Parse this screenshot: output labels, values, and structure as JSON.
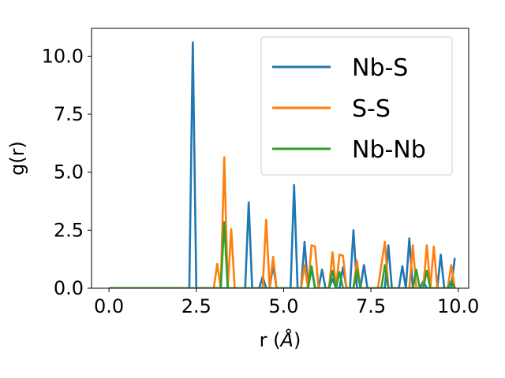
{
  "chart_data": {
    "type": "line",
    "title": "",
    "xlabel": "r (",
    "xlabel_unit": "Å",
    "xlabel_close": ")",
    "ylabel": "g(r)",
    "xlim": [
      -0.5,
      10.3
    ],
    "ylim": [
      0,
      11.2
    ],
    "xticks": [
      0.0,
      2.5,
      5.0,
      7.5,
      10.0
    ],
    "xtick_labels": [
      "0.0",
      "2.5",
      "5.0",
      "7.5",
      "10.0"
    ],
    "yticks": [
      0.0,
      2.5,
      5.0,
      7.5,
      10.0
    ],
    "ytick_labels": [
      "0.0",
      "2.5",
      "5.0",
      "7.5",
      "10.0"
    ],
    "grid": false,
    "legend_position": "top-right",
    "x": [
      0.0,
      0.1,
      0.2,
      0.3,
      0.4,
      0.5,
      0.6,
      0.7,
      0.8,
      0.9,
      1.0,
      1.1,
      1.2,
      1.3,
      1.4,
      1.5,
      1.6,
      1.7,
      1.8,
      1.9,
      2.0,
      2.1,
      2.2,
      2.3,
      2.4,
      2.5,
      2.6,
      2.7,
      2.8,
      2.9,
      3.0,
      3.1,
      3.2,
      3.3,
      3.4,
      3.5,
      3.6,
      3.7,
      3.8,
      3.9,
      4.0,
      4.1,
      4.2,
      4.3,
      4.4,
      4.5,
      4.6,
      4.7,
      4.8,
      4.9,
      5.0,
      5.1,
      5.2,
      5.3,
      5.4,
      5.5,
      5.6,
      5.7,
      5.8,
      5.9,
      6.0,
      6.1,
      6.2,
      6.3,
      6.4,
      6.5,
      6.6,
      6.7,
      6.8,
      6.9,
      7.0,
      7.1,
      7.2,
      7.3,
      7.4,
      7.5,
      7.6,
      7.7,
      7.8,
      7.9,
      8.0,
      8.1,
      8.2,
      8.3,
      8.4,
      8.5,
      8.6,
      8.7,
      8.8,
      8.9,
      9.0,
      9.1,
      9.2,
      9.3,
      9.4,
      9.5,
      9.6,
      9.7,
      9.8,
      9.9
    ],
    "series": [
      {
        "name": "Nb-S",
        "color": "#1f77b4",
        "values": [
          0,
          0,
          0,
          0,
          0,
          0,
          0,
          0,
          0,
          0,
          0,
          0,
          0,
          0,
          0,
          0,
          0,
          0,
          0,
          0,
          0,
          0,
          0,
          0,
          10.6,
          0,
          0,
          0,
          0,
          0,
          0,
          0,
          0,
          0,
          0,
          0,
          0,
          0,
          0,
          0,
          3.7,
          0,
          0,
          0,
          0.5,
          0,
          0,
          1.0,
          0,
          0,
          0,
          0,
          0,
          4.45,
          0,
          0,
          2.0,
          0,
          0.85,
          0,
          0,
          0.8,
          0,
          0,
          0.4,
          0,
          0,
          0.9,
          0,
          0,
          2.5,
          0,
          0,
          1.0,
          0,
          0,
          0,
          0,
          0,
          0,
          1.85,
          0,
          0,
          0,
          0.95,
          0,
          2.15,
          0,
          0,
          0,
          0.3,
          0,
          0,
          0,
          0,
          1.45,
          0,
          0,
          0,
          1.3
        ]
      },
      {
        "name": "S-S",
        "color": "#ff7f0e",
        "values": [
          0,
          0,
          0,
          0,
          0,
          0,
          0,
          0,
          0,
          0,
          0,
          0,
          0,
          0,
          0,
          0,
          0,
          0,
          0,
          0,
          0,
          0,
          0,
          0,
          0,
          0,
          0,
          0,
          0,
          0,
          0,
          1.05,
          0,
          5.65,
          0,
          2.55,
          0,
          0,
          0,
          0,
          0,
          0,
          0,
          0,
          0,
          2.95,
          0,
          1.35,
          0,
          0,
          0,
          0,
          0,
          0,
          0,
          0,
          1.0,
          0,
          1.85,
          1.8,
          0,
          0,
          0,
          0,
          1.55,
          0,
          1.45,
          1.4,
          0,
          0,
          0,
          1.2,
          0,
          0,
          0,
          0,
          0,
          0,
          1.0,
          2.0,
          0,
          0,
          0,
          0,
          0,
          0,
          0,
          1.85,
          0,
          0,
          0,
          1.85,
          0,
          1.8,
          0,
          0,
          0,
          0,
          1.0,
          0
        ]
      },
      {
        "name": "Nb-Nb",
        "color": "#2ca02c",
        "values": [
          0,
          0,
          0,
          0,
          0,
          0,
          0,
          0,
          0,
          0,
          0,
          0,
          0,
          0,
          0,
          0,
          0,
          0,
          0,
          0,
          0,
          0,
          0,
          0,
          0,
          0,
          0,
          0,
          0,
          0,
          0,
          0,
          0,
          2.85,
          0,
          0,
          0,
          0,
          0,
          0,
          0,
          0,
          0,
          0,
          0,
          0,
          0,
          0,
          0,
          0,
          0,
          0,
          0,
          0,
          0,
          0,
          0,
          0,
          0.95,
          0,
          0,
          0,
          0,
          0,
          0.75,
          0,
          0.7,
          0,
          0,
          0,
          0,
          0.8,
          0,
          0,
          0,
          0,
          0,
          0,
          0,
          1.0,
          0,
          0,
          0,
          0,
          0,
          0,
          0,
          0,
          0.8,
          0,
          0,
          0.75,
          0,
          0,
          0,
          0,
          0,
          0,
          0.3,
          0
        ]
      }
    ]
  }
}
